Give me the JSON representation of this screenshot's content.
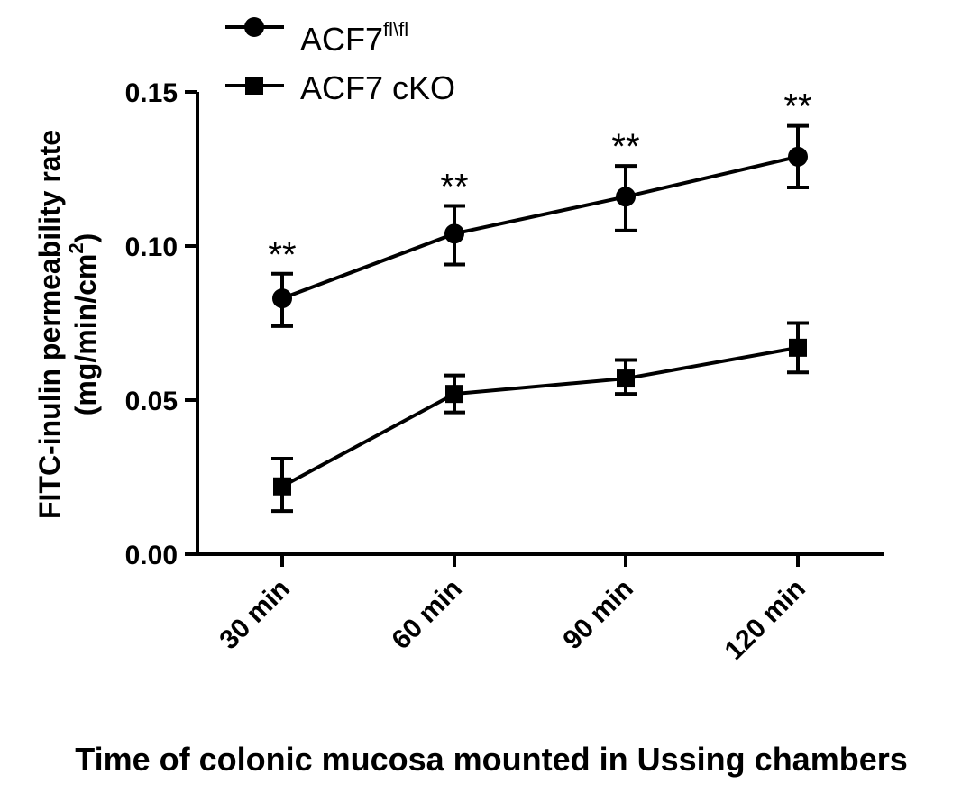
{
  "chart_data": {
    "type": "line",
    "xlabel": "Time of colonic mucosa mounted in Ussing chambers",
    "ylabel_line1": "FITC-inulin permeability rate",
    "ylabel_line2_prefix": "(mg/min/cm",
    "ylabel_line2_sup": "2",
    "ylabel_line2_suffix": ")",
    "categories": [
      "30 min",
      "60 min",
      "90 min",
      "120 min"
    ],
    "ylim": [
      0,
      0.15
    ],
    "yticks": [
      "0.00",
      "0.05",
      "0.10",
      "0.15"
    ],
    "ytick_values": [
      0,
      0.05,
      0.1,
      0.15
    ],
    "legend_position": "top-left",
    "grid": false,
    "series": [
      {
        "name_main": "ACF7",
        "name_sup": "fl\\fl",
        "marker": "circle",
        "values": [
          0.083,
          0.104,
          0.116,
          0.129
        ],
        "err_upper": [
          0.091,
          0.113,
          0.126,
          0.139
        ],
        "err_lower": [
          0.074,
          0.094,
          0.105,
          0.119
        ]
      },
      {
        "name_main": "ACF7 cKO",
        "name_sup": "",
        "marker": "square",
        "values": [
          0.022,
          0.052,
          0.057,
          0.067
        ],
        "err_upper": [
          0.031,
          0.058,
          0.063,
          0.075
        ],
        "err_lower": [
          0.014,
          0.046,
          0.052,
          0.059
        ]
      }
    ],
    "annotations": [
      "**",
      "**",
      "**",
      "**"
    ]
  }
}
